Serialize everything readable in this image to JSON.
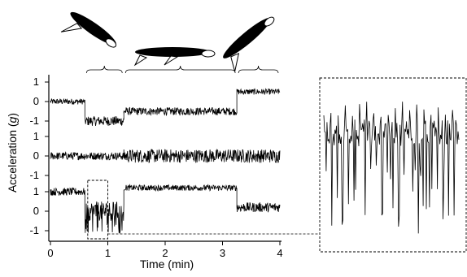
{
  "chart_data": {
    "type": "line",
    "title": "",
    "xlabel": "Time (min)",
    "ylabel_prefix": "Acceleration (",
    "ylabel_var": "g",
    "ylabel_suffix": ")",
    "xlim": [
      0,
      4
    ],
    "x_ticks": [
      "0",
      "1",
      "2",
      "3",
      "4"
    ],
    "y_tick_labels": [
      "1",
      "0",
      "-1",
      "1",
      "0",
      "-1",
      "1",
      "0",
      "-1"
    ],
    "grid": false,
    "legend": "none",
    "colors": {
      "trace": "#000000",
      "penguin": "#000000",
      "flipper": "#ffffff"
    },
    "phases": [
      {
        "label": "porpoising-penguin-icon",
        "x_start": 0.6,
        "x_end": 1.28
      },
      {
        "label": "swimming-penguin-icon",
        "x_start": 1.28,
        "x_end": 3.25
      },
      {
        "label": "jumping-penguin-icon",
        "x_start": 3.25,
        "x_end": 4.0
      }
    ],
    "series": [
      {
        "segments": [
          {
            "x": [
              0.0,
              0.6
            ],
            "mean": 0.0,
            "noise": 0.15
          },
          {
            "x": [
              0.6,
              1.28
            ],
            "mean": -1.0,
            "noise": 0.25
          },
          {
            "x": [
              1.28,
              3.25
            ],
            "mean": -0.5,
            "noise": 0.2
          },
          {
            "x": [
              3.25,
              4.0
            ],
            "mean": 0.5,
            "noise": 0.15
          }
        ]
      },
      {
        "segments": [
          {
            "x": [
              0.0,
              1.28
            ],
            "mean": 0.0,
            "noise": 0.2
          },
          {
            "x": [
              1.28,
              4.0
            ],
            "mean": 0.0,
            "noise": 0.35
          }
        ]
      },
      {
        "segments": [
          {
            "x": [
              0.0,
              0.6
            ],
            "mean": 1.0,
            "noise": 0.2
          },
          {
            "x": [
              0.6,
              1.28
            ],
            "mean": 0.0,
            "noise": 0.5
          },
          {
            "x": [
              1.28,
              3.25
            ],
            "mean": 1.2,
            "noise": 0.15
          },
          {
            "x": [
              3.25,
              4.0
            ],
            "mean": 0.2,
            "noise": 0.25
          }
        ]
      }
    ],
    "zoom": {
      "source_x": [
        0.65,
        1.0
      ],
      "source_series": 3,
      "y_range": [
        -2.2,
        0.6
      ]
    }
  }
}
